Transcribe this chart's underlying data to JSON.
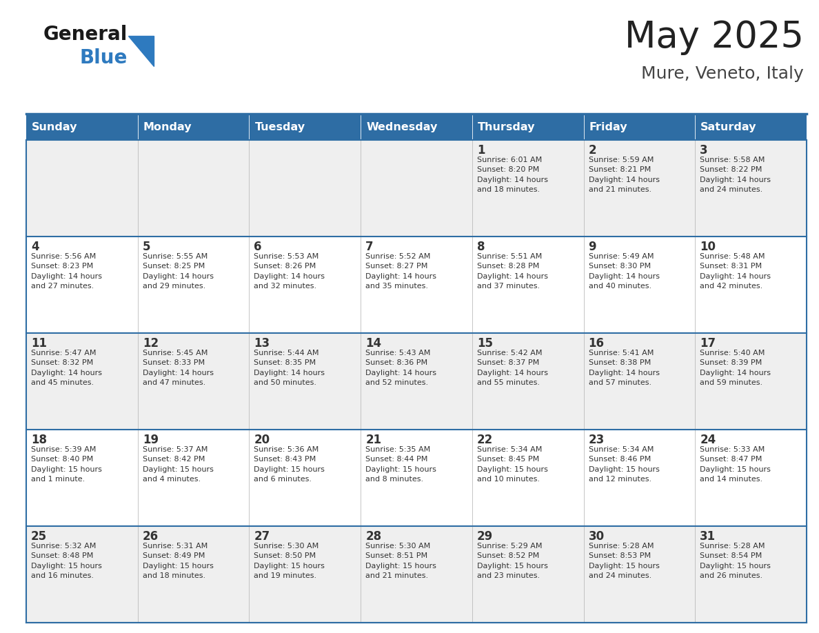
{
  "title": "May 2025",
  "subtitle": "Mure, Veneto, Italy",
  "header_bg": "#2E6DA4",
  "header_text": "#FFFFFF",
  "cell_bg_odd": "#EFEFEF",
  "cell_bg_even": "#FFFFFF",
  "line_color": "#2E6DA4",
  "text_color": "#333333",
  "logo_general_color": "#1a1a1a",
  "logo_blue_color": "#2E7ABF",
  "logo_triangle_color": "#2E7ABF",
  "title_color": "#222222",
  "subtitle_color": "#444444",
  "days_of_week": [
    "Sunday",
    "Monday",
    "Tuesday",
    "Wednesday",
    "Thursday",
    "Friday",
    "Saturday"
  ],
  "weeks": [
    [
      {
        "day": "",
        "info": ""
      },
      {
        "day": "",
        "info": ""
      },
      {
        "day": "",
        "info": ""
      },
      {
        "day": "",
        "info": ""
      },
      {
        "day": "1",
        "info": "Sunrise: 6:01 AM\nSunset: 8:20 PM\nDaylight: 14 hours\nand 18 minutes."
      },
      {
        "day": "2",
        "info": "Sunrise: 5:59 AM\nSunset: 8:21 PM\nDaylight: 14 hours\nand 21 minutes."
      },
      {
        "day": "3",
        "info": "Sunrise: 5:58 AM\nSunset: 8:22 PM\nDaylight: 14 hours\nand 24 minutes."
      }
    ],
    [
      {
        "day": "4",
        "info": "Sunrise: 5:56 AM\nSunset: 8:23 PM\nDaylight: 14 hours\nand 27 minutes."
      },
      {
        "day": "5",
        "info": "Sunrise: 5:55 AM\nSunset: 8:25 PM\nDaylight: 14 hours\nand 29 minutes."
      },
      {
        "day": "6",
        "info": "Sunrise: 5:53 AM\nSunset: 8:26 PM\nDaylight: 14 hours\nand 32 minutes."
      },
      {
        "day": "7",
        "info": "Sunrise: 5:52 AM\nSunset: 8:27 PM\nDaylight: 14 hours\nand 35 minutes."
      },
      {
        "day": "8",
        "info": "Sunrise: 5:51 AM\nSunset: 8:28 PM\nDaylight: 14 hours\nand 37 minutes."
      },
      {
        "day": "9",
        "info": "Sunrise: 5:49 AM\nSunset: 8:30 PM\nDaylight: 14 hours\nand 40 minutes."
      },
      {
        "day": "10",
        "info": "Sunrise: 5:48 AM\nSunset: 8:31 PM\nDaylight: 14 hours\nand 42 minutes."
      }
    ],
    [
      {
        "day": "11",
        "info": "Sunrise: 5:47 AM\nSunset: 8:32 PM\nDaylight: 14 hours\nand 45 minutes."
      },
      {
        "day": "12",
        "info": "Sunrise: 5:45 AM\nSunset: 8:33 PM\nDaylight: 14 hours\nand 47 minutes."
      },
      {
        "day": "13",
        "info": "Sunrise: 5:44 AM\nSunset: 8:35 PM\nDaylight: 14 hours\nand 50 minutes."
      },
      {
        "day": "14",
        "info": "Sunrise: 5:43 AM\nSunset: 8:36 PM\nDaylight: 14 hours\nand 52 minutes."
      },
      {
        "day": "15",
        "info": "Sunrise: 5:42 AM\nSunset: 8:37 PM\nDaylight: 14 hours\nand 55 minutes."
      },
      {
        "day": "16",
        "info": "Sunrise: 5:41 AM\nSunset: 8:38 PM\nDaylight: 14 hours\nand 57 minutes."
      },
      {
        "day": "17",
        "info": "Sunrise: 5:40 AM\nSunset: 8:39 PM\nDaylight: 14 hours\nand 59 minutes."
      }
    ],
    [
      {
        "day": "18",
        "info": "Sunrise: 5:39 AM\nSunset: 8:40 PM\nDaylight: 15 hours\nand 1 minute."
      },
      {
        "day": "19",
        "info": "Sunrise: 5:37 AM\nSunset: 8:42 PM\nDaylight: 15 hours\nand 4 minutes."
      },
      {
        "day": "20",
        "info": "Sunrise: 5:36 AM\nSunset: 8:43 PM\nDaylight: 15 hours\nand 6 minutes."
      },
      {
        "day": "21",
        "info": "Sunrise: 5:35 AM\nSunset: 8:44 PM\nDaylight: 15 hours\nand 8 minutes."
      },
      {
        "day": "22",
        "info": "Sunrise: 5:34 AM\nSunset: 8:45 PM\nDaylight: 15 hours\nand 10 minutes."
      },
      {
        "day": "23",
        "info": "Sunrise: 5:34 AM\nSunset: 8:46 PM\nDaylight: 15 hours\nand 12 minutes."
      },
      {
        "day": "24",
        "info": "Sunrise: 5:33 AM\nSunset: 8:47 PM\nDaylight: 15 hours\nand 14 minutes."
      }
    ],
    [
      {
        "day": "25",
        "info": "Sunrise: 5:32 AM\nSunset: 8:48 PM\nDaylight: 15 hours\nand 16 minutes."
      },
      {
        "day": "26",
        "info": "Sunrise: 5:31 AM\nSunset: 8:49 PM\nDaylight: 15 hours\nand 18 minutes."
      },
      {
        "day": "27",
        "info": "Sunrise: 5:30 AM\nSunset: 8:50 PM\nDaylight: 15 hours\nand 19 minutes."
      },
      {
        "day": "28",
        "info": "Sunrise: 5:30 AM\nSunset: 8:51 PM\nDaylight: 15 hours\nand 21 minutes."
      },
      {
        "day": "29",
        "info": "Sunrise: 5:29 AM\nSunset: 8:52 PM\nDaylight: 15 hours\nand 23 minutes."
      },
      {
        "day": "30",
        "info": "Sunrise: 5:28 AM\nSunset: 8:53 PM\nDaylight: 15 hours\nand 24 minutes."
      },
      {
        "day": "31",
        "info": "Sunrise: 5:28 AM\nSunset: 8:54 PM\nDaylight: 15 hours\nand 26 minutes."
      }
    ]
  ]
}
